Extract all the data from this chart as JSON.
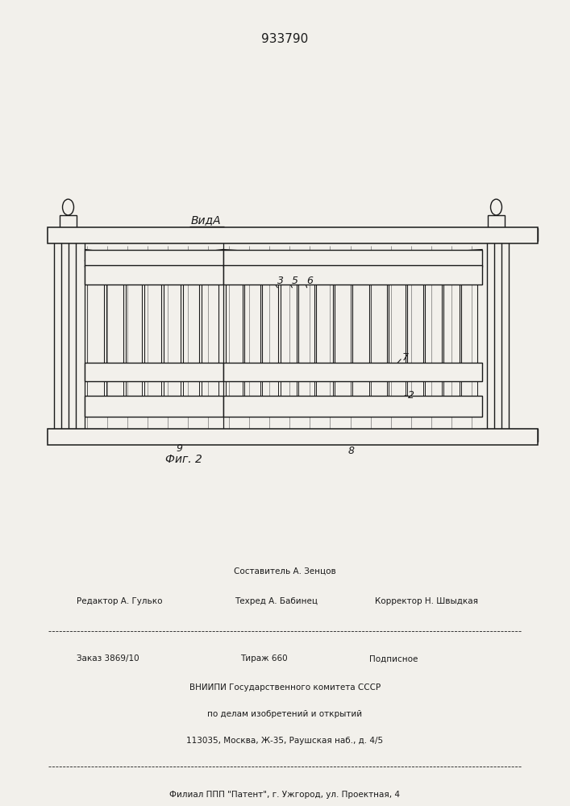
{
  "patent_number": "933790",
  "view_label": "ВидА",
  "fig_label": "Фиг. 2",
  "footer_line1": "Составитель А. Зенцов",
  "footer_line2_left": "Редактор А. Гулько",
  "footer_line2_mid": "Техред А. Бабинец",
  "footer_line2_right": "Корректор Н. Швыдкая",
  "footer_line3_left": "Заказ 3869/10",
  "footer_line3_mid": "Тираж 660",
  "footer_line3_right": "Подписное",
  "footer_line4": "ВНИИПИ Государственного комитета СССР",
  "footer_line5": "по делам изобретений и открытий",
  "footer_line6": "113035, Москва, Ж-35, Раушская наб., д. 4/5",
  "footer_line7": "Филиал ППП \"Патент\", г. Ужгород, ул. Проектная, 4",
  "bg_color": "#f2f0eb",
  "line_color": "#1a1a1a"
}
